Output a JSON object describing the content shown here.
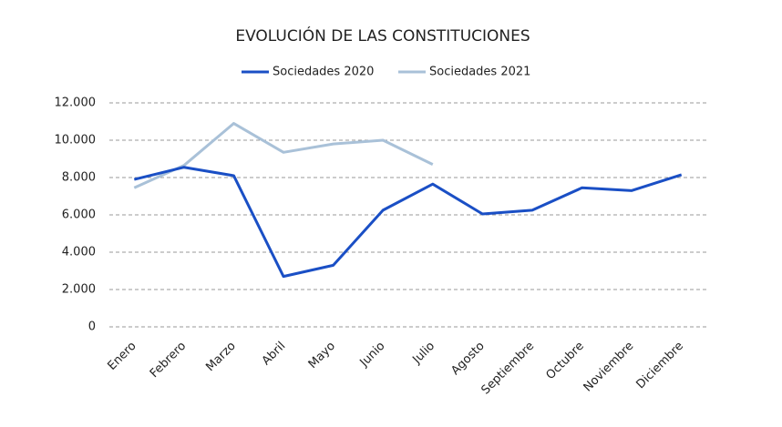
{
  "chart_data": {
    "type": "line",
    "title": "EVOLUCIÓN DE LAS CONSTITUCIONES",
    "categories": [
      "Enero",
      "Febrero",
      "Marzo",
      "Abril",
      "Mayo",
      "Junio",
      "Julio",
      "Agosto",
      "Septiembre",
      "Octubre",
      "Noviembre",
      "Diciembre"
    ],
    "series": [
      {
        "name": "Sociedades 2020",
        "color": "#1a4fc5",
        "values": [
          7900,
          8550,
          8100,
          2700,
          3300,
          6250,
          7650,
          6050,
          6250,
          7450,
          7300,
          8150
        ]
      },
      {
        "name": "Sociedades 2021",
        "color": "#a9c1d8",
        "values": [
          7450,
          8650,
          10900,
          9350,
          9800,
          10000,
          8700,
          null,
          null,
          null,
          null,
          null
        ]
      }
    ],
    "ylim": [
      0,
      12000
    ],
    "yticks": [
      0,
      {
        "value": 2000,
        "label": "2.000"
      },
      {
        "value": 4000,
        "label": "4.000"
      },
      {
        "value": 6000,
        "label": "6.000"
      },
      {
        "value": 8000,
        "label": "8.000"
      },
      {
        "value": 10000,
        "label": "10.000"
      },
      {
        "value": 12000,
        "label": "12.000"
      }
    ],
    "grid": true,
    "legend": "top"
  }
}
